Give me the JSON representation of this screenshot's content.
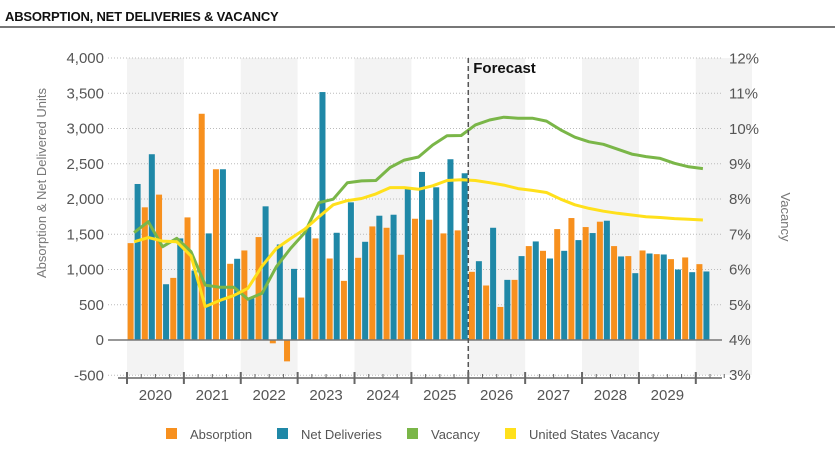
{
  "title": "ABSORPTION, NET DELIVERIES & VACANCY",
  "chart_data": {
    "type": "bar+line",
    "title": "ABSORPTION, NET DELIVERIES & VACANCY",
    "frequency": "quarterly",
    "start": "2020 Q1",
    "year_labels": [
      "2020",
      "2021",
      "2022",
      "2023",
      "2024",
      "2025",
      "2026",
      "2027",
      "2028",
      "2029"
    ],
    "annotation": "Forecast",
    "forecast_starts": "2026 Q1",
    "y_left": {
      "label": "Absorption & Net Delivered Units",
      "lim": [
        -500,
        4000
      ],
      "ticks": [
        "-500",
        "0",
        "500",
        "1,000",
        "1,500",
        "2,000",
        "2,500",
        "3,000",
        "3,500",
        "4,000"
      ]
    },
    "y_right": {
      "label": "Vacancy",
      "lim": [
        3,
        12
      ],
      "ticks": [
        "3%",
        "4%",
        "5%",
        "6%",
        "7%",
        "8%",
        "9%",
        "10%",
        "11%",
        "12%"
      ]
    },
    "grid": true,
    "legend_position": "bottom",
    "series": [
      {
        "name": "Absorption",
        "type": "bar",
        "axis": "left",
        "color": "#F7901E",
        "values": [
          1374,
          1882,
          2062,
          881,
          1739,
          3209,
          2422,
          1081,
          1270,
          1460,
          -47,
          -303,
          602,
          1441,
          1156,
          839,
          1166,
          1611,
          1592,
          1209,
          1720,
          1706,
          1512,
          1555,
          967,
          773,
          469,
          853,
          1332,
          1265,
          1573,
          1730,
          1602,
          1678,
          1332,
          1190,
          1270,
          1218,
          1147,
          1171,
          1076
        ]
      },
      {
        "name": "Net Deliveries",
        "type": "bar",
        "axis": "left",
        "color": "#1F88A7",
        "values": [
          2213,
          2635,
          791,
          1441,
          986,
          1512,
          2422,
          1152,
          592,
          1896,
          1355,
          1009,
          1602,
          3517,
          1521,
          1953,
          1393,
          1763,
          1777,
          2142,
          2384,
          2166,
          2564,
          2365,
          1118,
          1592,
          853,
          1190,
          1398,
          1156,
          1265,
          1417,
          1517,
          1692,
          1185,
          948,
          1227,
          1213,
          1000,
          962,
          972
        ]
      },
      {
        "name": "Vacancy",
        "type": "line",
        "axis": "right",
        "color": "#7AB648",
        "values": [
          7.05,
          7.36,
          6.65,
          6.89,
          6.51,
          5.56,
          5.5,
          5.5,
          5.16,
          5.33,
          6.08,
          6.6,
          7.05,
          7.9,
          8.0,
          8.47,
          8.52,
          8.53,
          8.9,
          9.11,
          9.2,
          9.54,
          9.8,
          9.81,
          10.11,
          10.25,
          10.33,
          10.3,
          10.3,
          10.22,
          9.97,
          9.76,
          9.63,
          9.56,
          9.42,
          9.28,
          9.21,
          9.16,
          9.02,
          8.92,
          8.87
        ]
      },
      {
        "name": "United States Vacancy",
        "type": "line",
        "axis": "right",
        "color": "#FFE01B",
        "values": [
          6.79,
          6.91,
          6.81,
          6.79,
          6.39,
          4.95,
          5.12,
          5.26,
          5.47,
          6.1,
          6.6,
          6.88,
          7.15,
          7.5,
          7.84,
          7.96,
          8.02,
          8.15,
          8.33,
          8.33,
          8.28,
          8.38,
          8.53,
          8.55,
          8.53,
          8.47,
          8.4,
          8.3,
          8.25,
          8.19,
          8.0,
          7.84,
          7.74,
          7.66,
          7.6,
          7.55,
          7.5,
          7.48,
          7.45,
          7.43,
          7.41
        ]
      }
    ]
  }
}
